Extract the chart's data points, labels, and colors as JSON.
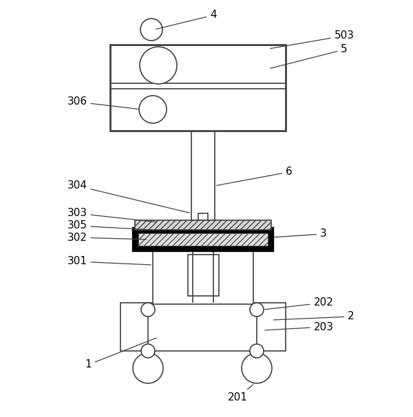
{
  "fig_width": 6.0,
  "fig_height": 6.06,
  "dpi": 100,
  "bg_color": "#ffffff",
  "lc": "#404040",
  "lw": 1.2,
  "lw_thick": 2.0
}
